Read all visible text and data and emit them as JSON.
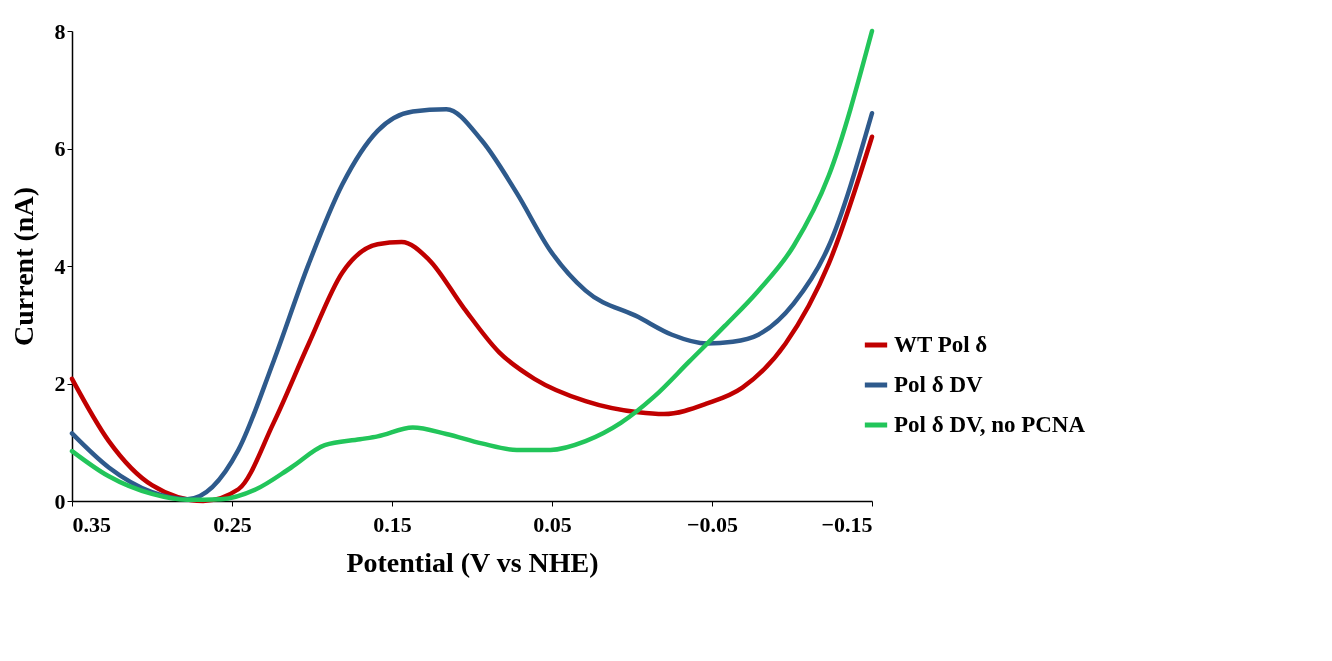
{
  "chart_data": {
    "type": "line",
    "xlabel": "Potential (V vs NHE)",
    "ylabel": "Current (nA)",
    "xlim": [
      0.35,
      -0.15
    ],
    "xticks": [
      0.35,
      0.25,
      0.15,
      0.05,
      -0.05,
      -0.15
    ],
    "ylim": [
      0,
      8
    ],
    "yticks": [
      0,
      2,
      4,
      6,
      8
    ],
    "grid": false,
    "legend": "bottom right",
    "marker": "none",
    "line_style": "solid",
    "series": [
      {
        "name": "WT Pol δ",
        "color": "#c00000",
        "x": [
          0.35,
          0.327,
          0.3,
          0.268,
          0.246,
          0.224,
          0.202,
          0.181,
          0.159,
          0.144,
          0.127,
          0.105,
          0.083,
          0.061,
          0.029,
          -0.004,
          -0.02,
          -0.047,
          -0.069,
          -0.096,
          -0.123,
          -0.15
        ],
        "values": [
          2.08,
          1.02,
          0.27,
          0.0,
          0.2,
          1.33,
          2.68,
          3.89,
          4.37,
          4.41,
          4.11,
          3.28,
          2.53,
          2.08,
          1.7,
          1.51,
          1.48,
          1.66,
          1.93,
          2.68,
          4.04,
          6.2
        ]
      },
      {
        "name": "Pol δ DV",
        "color": "#2e5a8c",
        "x": [
          0.35,
          0.327,
          0.3,
          0.278,
          0.246,
          0.224,
          0.202,
          0.181,
          0.159,
          0.137,
          0.116,
          0.094,
          0.072,
          0.051,
          0.029,
          -0.004,
          -0.025,
          -0.047,
          -0.063,
          -0.079,
          -0.101,
          -0.123,
          -0.15
        ],
        "values": [
          1.15,
          0.57,
          0.15,
          0.03,
          0.87,
          2.38,
          4.04,
          5.39,
          6.3,
          6.63,
          6.67,
          6.14,
          5.24,
          4.26,
          3.58,
          3.13,
          2.83,
          2.68,
          2.71,
          2.83,
          3.36,
          4.34,
          6.6
        ]
      },
      {
        "name": "Pol δ DV, no PCNA",
        "color": "#22c55a",
        "x": [
          0.35,
          0.327,
          0.3,
          0.278,
          0.257,
          0.235,
          0.213,
          0.192,
          0.17,
          0.159,
          0.137,
          0.116,
          0.094,
          0.072,
          0.051,
          0.029,
          0.007,
          -0.014,
          -0.036,
          -0.058,
          -0.079,
          -0.101,
          -0.123,
          -0.15
        ],
        "values": [
          0.85,
          0.42,
          0.12,
          0.02,
          0.03,
          0.2,
          0.57,
          0.95,
          1.05,
          1.1,
          1.25,
          1.14,
          0.98,
          0.87,
          0.87,
          1.02,
          1.33,
          1.78,
          2.38,
          2.98,
          3.58,
          4.34,
          5.54,
          8.0
        ]
      }
    ]
  }
}
